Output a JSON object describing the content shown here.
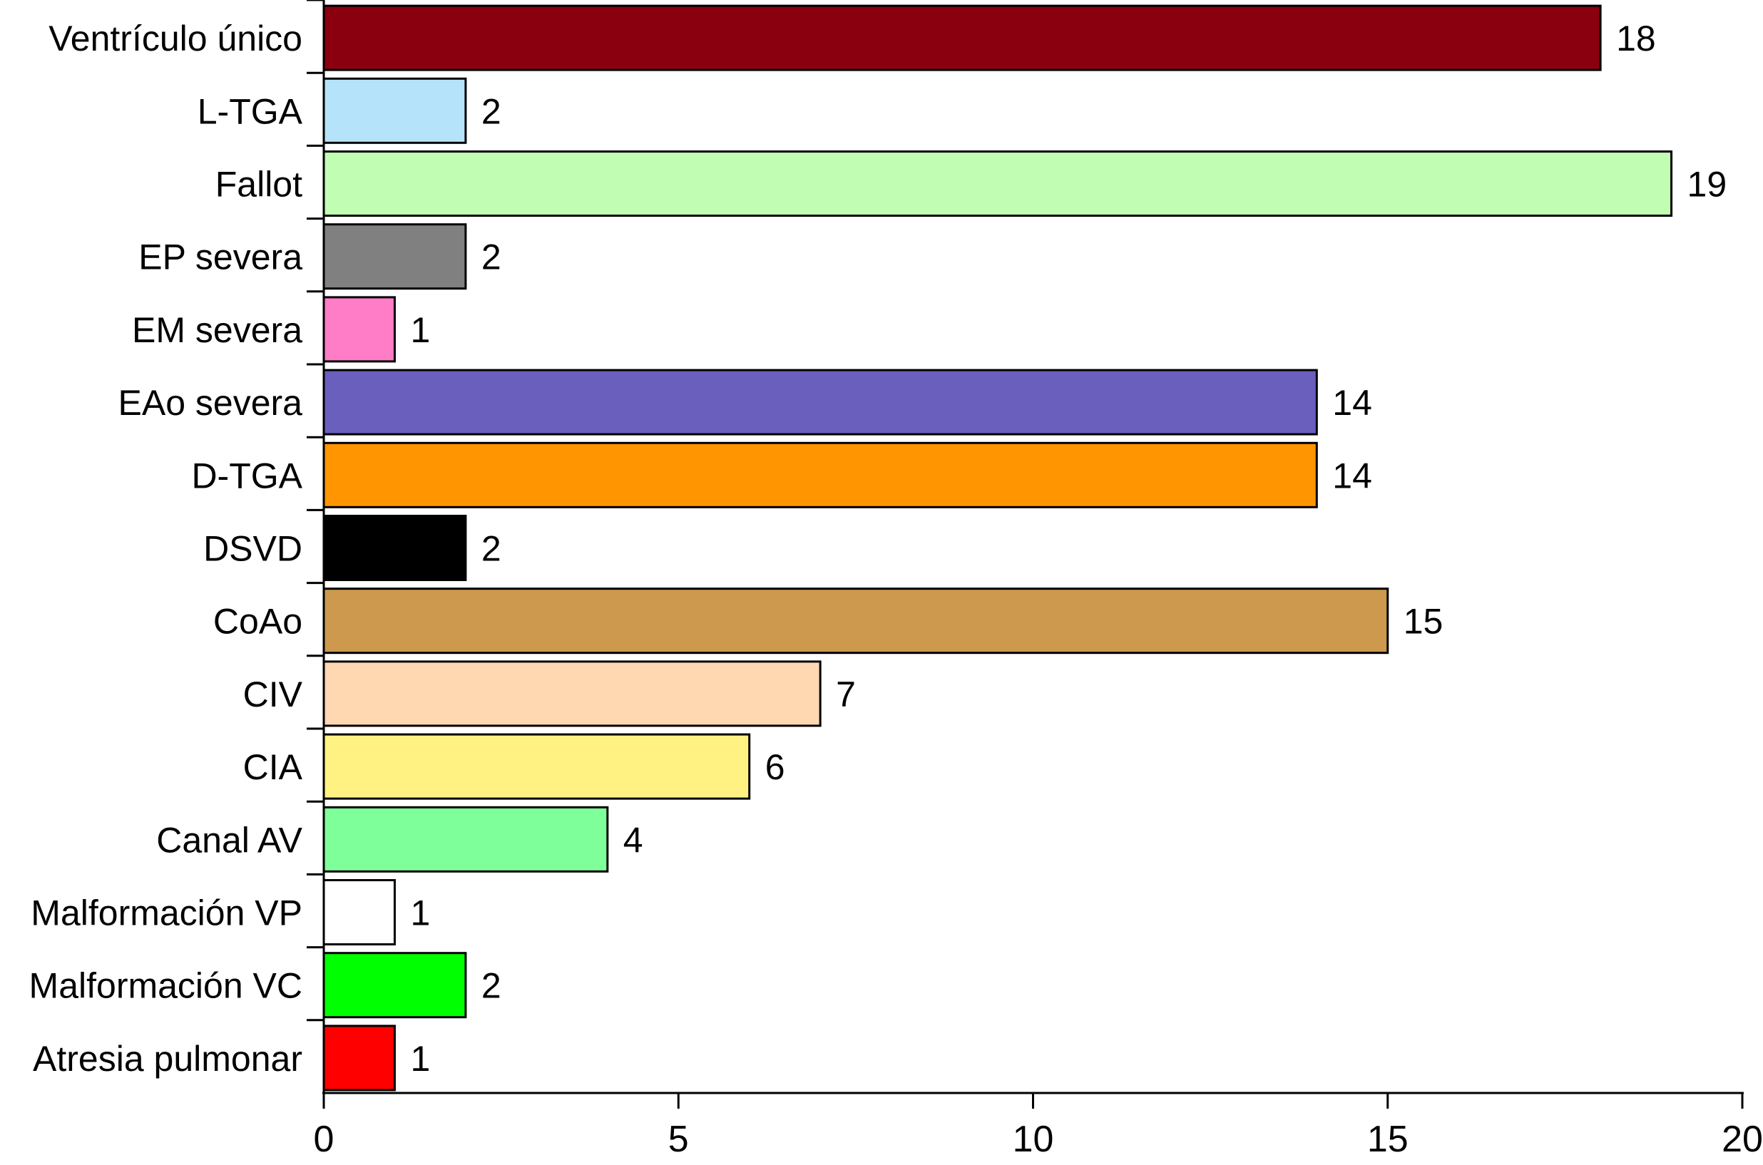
{
  "chart_data": {
    "type": "bar",
    "orientation": "horizontal",
    "title": "",
    "xlabel": "",
    "ylabel": "",
    "xlim": [
      0,
      20
    ],
    "xticks": [
      0,
      5,
      10,
      15,
      20
    ],
    "grid": false,
    "legend": "none",
    "categories": [
      "Ventrículo único",
      "L-TGA",
      "Fallot",
      "EP severa",
      "EM severa",
      "EAo severa",
      "D-TGA",
      "DSVD",
      "CoAo",
      "CIV",
      "CIA",
      "Canal AV",
      "Malformación VP",
      "Malformación VC",
      "Atresia pulmonar"
    ],
    "values": [
      18,
      2,
      19,
      2,
      1,
      14,
      14,
      2,
      15,
      7,
      6,
      4,
      1,
      2,
      1
    ],
    "colors": [
      "#8B000F",
      "#B5E4FA",
      "#C2FDB4",
      "#808080",
      "#FF7CC6",
      "#6A5FBD",
      "#FF9500",
      "#000000",
      "#CC994E",
      "#FFD8B2",
      "#FFF283",
      "#7FFF9A",
      "#FFFFFF",
      "#00FF00",
      "#FF0000"
    ]
  }
}
